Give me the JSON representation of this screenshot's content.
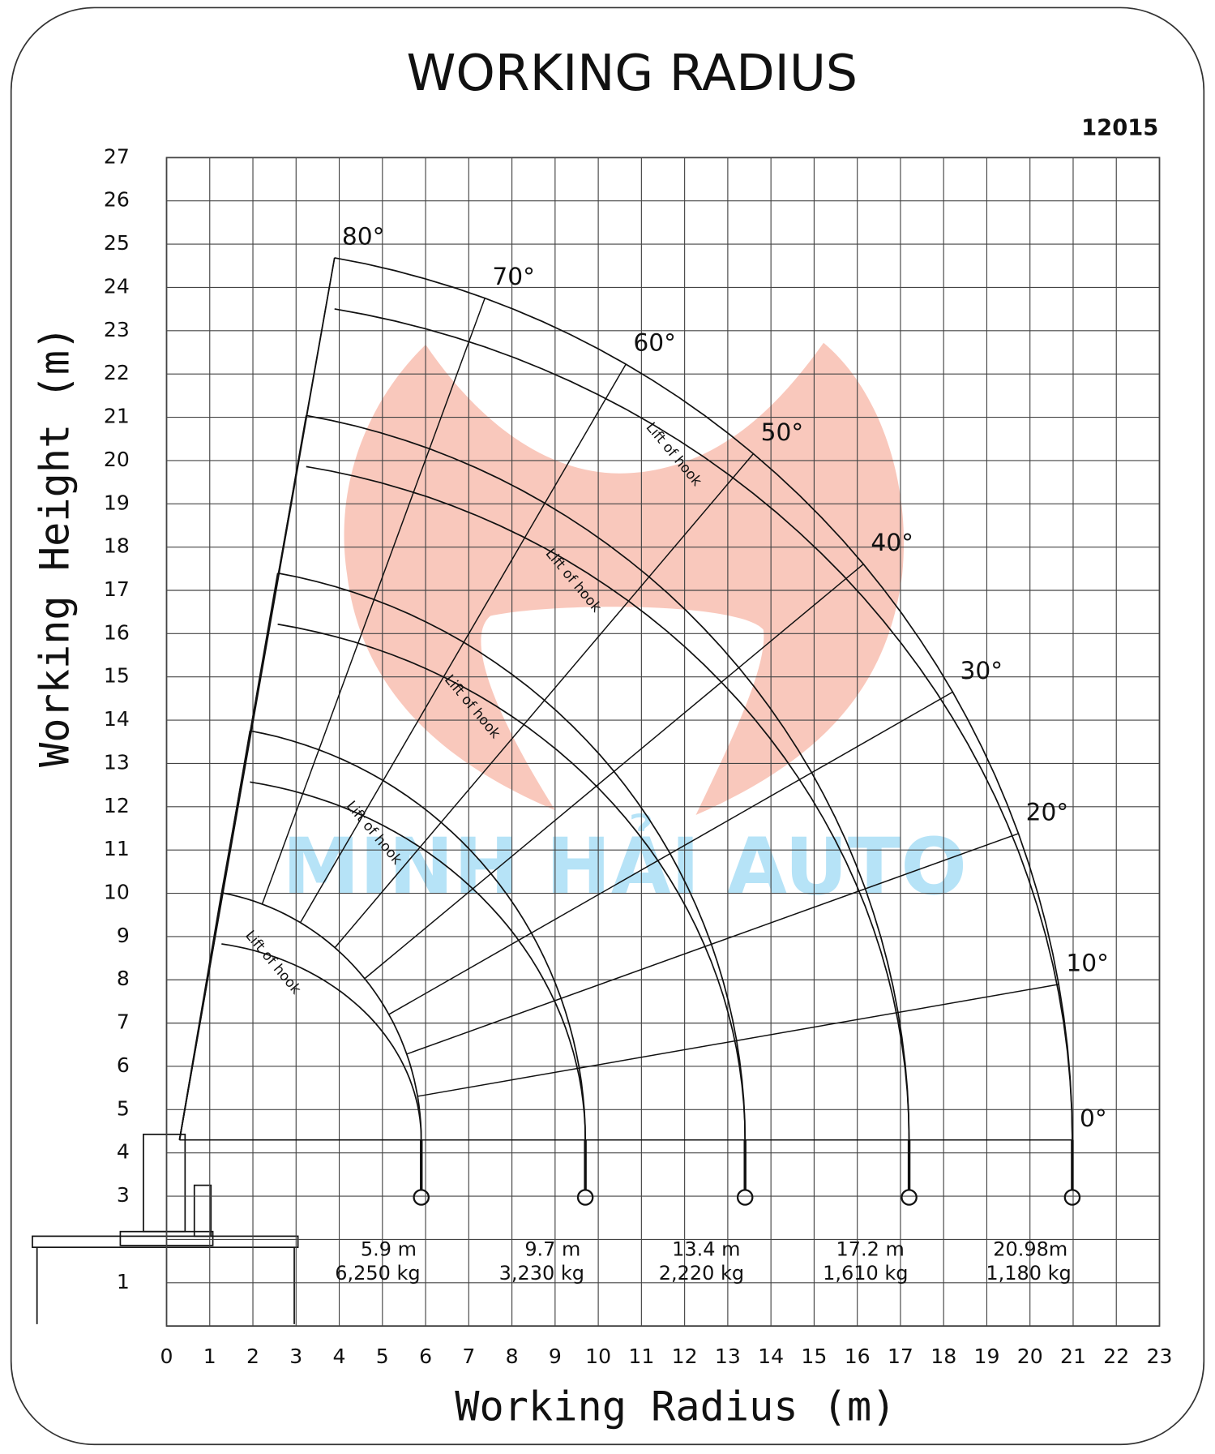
{
  "title": "WORKING RADIUS",
  "model": "12015",
  "x_label": "Working Radius (m)",
  "y_label": "Working Height (m)",
  "watermark": "MINH HẢI AUTO",
  "lift_label": "Lift of hook",
  "chart_data": {
    "type": "radius",
    "xlim": [
      0,
      23
    ],
    "ylim": [
      0,
      27
    ],
    "xticks": [
      0,
      1,
      2,
      3,
      4,
      5,
      6,
      7,
      8,
      9,
      10,
      11,
      12,
      13,
      14,
      15,
      16,
      17,
      18,
      19,
      20,
      21,
      22,
      23
    ],
    "yticks": [
      1,
      3,
      4,
      5,
      6,
      7,
      8,
      9,
      10,
      11,
      12,
      13,
      14,
      15,
      16,
      17,
      18,
      19,
      20,
      21,
      22,
      23,
      24,
      25,
      26,
      27
    ],
    "radii": [
      5.9,
      9.7,
      13.4,
      17.2,
      20.98
    ],
    "radius_labels": [
      "5.9 m",
      "9.7 m",
      "13.4 m",
      "17.2 m",
      "20.98m"
    ],
    "heights": [
      10.1,
      13.9,
      17.6,
      21.3,
      25.0
    ],
    "loads": [
      6250,
      3230,
      2220,
      1610,
      1180
    ],
    "load_labels": [
      "6,250 kg",
      "3,230 kg",
      "2,220 kg",
      "1,610 kg",
      "1,180 kg"
    ],
    "angles": [
      {
        "value": 80,
        "label": "80°"
      },
      {
        "value": 70,
        "label": "70°"
      },
      {
        "value": 60,
        "label": "60°"
      },
      {
        "value": 50,
        "label": "50°"
      },
      {
        "value": 40,
        "label": "40°"
      },
      {
        "value": 30,
        "label": "30°"
      },
      {
        "value": 20,
        "label": "20°"
      },
      {
        "value": 10,
        "label": "10°"
      },
      {
        "value": 0,
        "label": "0°"
      }
    ]
  }
}
